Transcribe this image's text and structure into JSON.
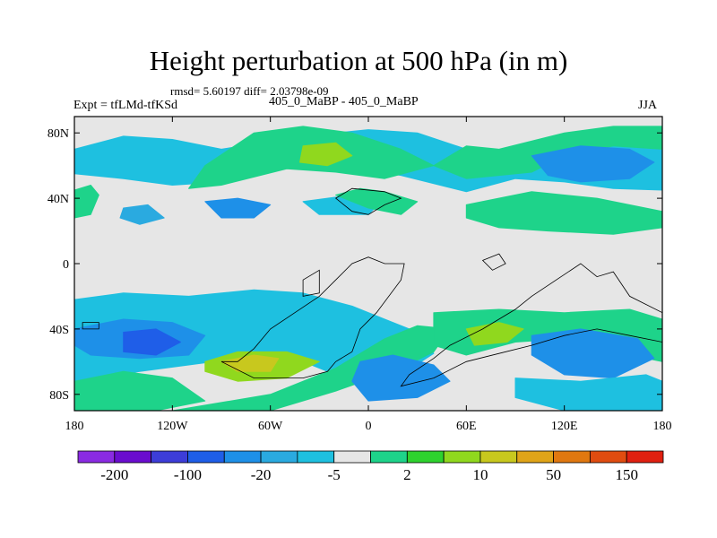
{
  "chart_data": {
    "type": "heatmap",
    "title": "Height perturbation at 500 hPa (in m)",
    "stats_line": "rmsd= 5.60197  diff= 2.03798e-09",
    "left_label": "Expt = tfLMd-tfKSd",
    "center_label": "405_0_MaBP - 405_0_MaBP",
    "right_label": "JJA",
    "xlim": [
      -180,
      180
    ],
    "ylim": [
      -90,
      90
    ],
    "x_ticks": [
      -180,
      -120,
      -60,
      0,
      60,
      120,
      180
    ],
    "x_tick_labels": [
      "180",
      "120W",
      "60W",
      "0",
      "60E",
      "120E",
      "180"
    ],
    "y_ticks": [
      80,
      40,
      0,
      -40,
      -80
    ],
    "y_tick_labels": [
      "80N",
      "40N",
      "0",
      "40S",
      "80S"
    ],
    "colorbar": {
      "colors": [
        "#8a2be2",
        "#6a0dcf",
        "#3d3dd8",
        "#1f5ee8",
        "#1e90e8",
        "#2aaae0",
        "#1ec0e0",
        "#e6e6e6",
        "#1ed38a",
        "#2ed22e",
        "#90d81e",
        "#c8c81e",
        "#e0a418",
        "#e07810",
        "#e04c10",
        "#e02010"
      ],
      "tick_labels": [
        "-200",
        "-100",
        "-20",
        "-5",
        "2",
        "10",
        "50",
        "150"
      ]
    },
    "features": [
      {
        "name": "north-cyan-band",
        "color": "#1ec0e0",
        "pts": [
          [
            -180,
            70
          ],
          [
            -150,
            78
          ],
          [
            -120,
            76
          ],
          [
            -90,
            70
          ],
          [
            -40,
            78
          ],
          [
            0,
            82
          ],
          [
            30,
            80
          ],
          [
            60,
            70
          ],
          [
            100,
            62
          ],
          [
            140,
            74
          ],
          [
            180,
            75
          ],
          [
            180,
            45
          ],
          [
            150,
            46
          ],
          [
            120,
            50
          ],
          [
            90,
            52
          ],
          [
            60,
            44
          ],
          [
            20,
            54
          ],
          [
            -20,
            60
          ],
          [
            -60,
            58
          ],
          [
            -90,
            50
          ],
          [
            -120,
            48
          ],
          [
            -150,
            52
          ],
          [
            -180,
            55
          ]
        ]
      },
      {
        "name": "north-green-zone",
        "color": "#1ed38a",
        "pts": [
          [
            -70,
            80
          ],
          [
            -40,
            84
          ],
          [
            -10,
            80
          ],
          [
            20,
            70
          ],
          [
            40,
            60
          ],
          [
            10,
            52
          ],
          [
            -20,
            56
          ],
          [
            -50,
            58
          ],
          [
            -90,
            48
          ],
          [
            -110,
            46
          ],
          [
            -100,
            60
          ]
        ]
      },
      {
        "name": "north-lime-zone",
        "color": "#90d81e",
        "pts": [
          [
            -40,
            72
          ],
          [
            -20,
            74
          ],
          [
            -10,
            66
          ],
          [
            -25,
            60
          ],
          [
            -42,
            62
          ]
        ]
      },
      {
        "name": "north-east-green",
        "color": "#1ed38a",
        "pts": [
          [
            40,
            60
          ],
          [
            60,
            72
          ],
          [
            80,
            70
          ],
          [
            120,
            80
          ],
          [
            150,
            84
          ],
          [
            180,
            84
          ],
          [
            180,
            70
          ],
          [
            150,
            72
          ],
          [
            120,
            66
          ],
          [
            100,
            56
          ],
          [
            60,
            52
          ]
        ]
      },
      {
        "name": "north-east-blue",
        "color": "#1e90e8",
        "pts": [
          [
            100,
            66
          ],
          [
            130,
            72
          ],
          [
            160,
            70
          ],
          [
            175,
            62
          ],
          [
            160,
            52
          ],
          [
            130,
            50
          ],
          [
            110,
            54
          ]
        ]
      },
      {
        "name": "mid-lat-green-east",
        "color": "#1ed38a",
        "pts": [
          [
            60,
            36
          ],
          [
            100,
            44
          ],
          [
            140,
            40
          ],
          [
            180,
            32
          ],
          [
            180,
            22
          ],
          [
            150,
            18
          ],
          [
            110,
            20
          ],
          [
            80,
            22
          ],
          [
            60,
            28
          ]
        ]
      },
      {
        "name": "mid-lat-blue-west",
        "color": "#1e90e8",
        "pts": [
          [
            -100,
            38
          ],
          [
            -80,
            40
          ],
          [
            -60,
            36
          ],
          [
            -70,
            28
          ],
          [
            -90,
            28
          ]
        ]
      },
      {
        "name": "mid-lat-cyan-center",
        "color": "#1ec0e0",
        "pts": [
          [
            -40,
            38
          ],
          [
            -10,
            42
          ],
          [
            10,
            40
          ],
          [
            0,
            30
          ],
          [
            -30,
            30
          ]
        ]
      },
      {
        "name": "mid-lat-green-small",
        "color": "#1ed38a",
        "pts": [
          [
            -20,
            42
          ],
          [
            -5,
            46
          ],
          [
            10,
            44
          ],
          [
            30,
            38
          ],
          [
            20,
            30
          ],
          [
            0,
            34
          ]
        ]
      },
      {
        "name": "western-green-blob",
        "color": "#1ed38a",
        "pts": [
          [
            -180,
            45
          ],
          [
            -170,
            48
          ],
          [
            -165,
            42
          ],
          [
            -170,
            30
          ],
          [
            -180,
            28
          ]
        ]
      },
      {
        "name": "western-lightblue-blob",
        "color": "#2aaae0",
        "pts": [
          [
            -150,
            34
          ],
          [
            -135,
            36
          ],
          [
            -125,
            28
          ],
          [
            -140,
            24
          ],
          [
            -152,
            28
          ]
        ]
      },
      {
        "name": "south-cyan-main",
        "color": "#1ec0e0",
        "pts": [
          [
            -180,
            -22
          ],
          [
            -150,
            -18
          ],
          [
            -110,
            -20
          ],
          [
            -70,
            -16
          ],
          [
            -40,
            -18
          ],
          [
            -10,
            -26
          ],
          [
            10,
            -34
          ],
          [
            30,
            -42
          ],
          [
            40,
            -55
          ],
          [
            20,
            -68
          ],
          [
            -10,
            -72
          ],
          [
            -40,
            -60
          ],
          [
            -80,
            -58
          ],
          [
            -110,
            -62
          ],
          [
            -140,
            -66
          ],
          [
            -180,
            -72
          ]
        ]
      },
      {
        "name": "south-blue-west",
        "color": "#1e90e8",
        "pts": [
          [
            -180,
            -40
          ],
          [
            -150,
            -34
          ],
          [
            -120,
            -36
          ],
          [
            -100,
            -44
          ],
          [
            -110,
            -56
          ],
          [
            -140,
            -58
          ],
          [
            -170,
            -56
          ],
          [
            -180,
            -50
          ]
        ]
      },
      {
        "name": "south-darkblue-core",
        "color": "#1f5ee8",
        "pts": [
          [
            -150,
            -42
          ],
          [
            -130,
            -40
          ],
          [
            -115,
            -48
          ],
          [
            -130,
            -56
          ],
          [
            -150,
            -54
          ]
        ]
      },
      {
        "name": "south-green-wave",
        "color": "#1ed38a",
        "pts": [
          [
            -120,
            -90
          ],
          [
            -60,
            -80
          ],
          [
            -20,
            -64
          ],
          [
            10,
            -46
          ],
          [
            30,
            -38
          ],
          [
            50,
            -40
          ],
          [
            40,
            -54
          ],
          [
            20,
            -64
          ],
          [
            -20,
            -78
          ],
          [
            -60,
            -90
          ]
        ]
      },
      {
        "name": "south-lime-core",
        "color": "#90d81e",
        "pts": [
          [
            -100,
            -60
          ],
          [
            -80,
            -54
          ],
          [
            -50,
            -54
          ],
          [
            -30,
            -60
          ],
          [
            -50,
            -70
          ],
          [
            -80,
            -72
          ],
          [
            -100,
            -66
          ]
        ]
      },
      {
        "name": "south-yellow-core",
        "color": "#c8c81e",
        "pts": [
          [
            -90,
            -60
          ],
          [
            -70,
            -56
          ],
          [
            -55,
            -58
          ],
          [
            -60,
            -66
          ],
          [
            -80,
            -66
          ]
        ]
      },
      {
        "name": "south-far-green",
        "color": "#1ed38a",
        "pts": [
          [
            -180,
            -72
          ],
          [
            -150,
            -66
          ],
          [
            -120,
            -70
          ],
          [
            -100,
            -84
          ],
          [
            -130,
            -90
          ],
          [
            -180,
            -90
          ]
        ]
      },
      {
        "name": "south-east-green",
        "color": "#1ed38a",
        "pts": [
          [
            40,
            -30
          ],
          [
            80,
            -28
          ],
          [
            120,
            -30
          ],
          [
            160,
            -28
          ],
          [
            180,
            -34
          ],
          [
            180,
            -60
          ],
          [
            150,
            -54
          ],
          [
            120,
            -46
          ],
          [
            90,
            -48
          ],
          [
            60,
            -56
          ],
          [
            40,
            -50
          ]
        ]
      },
      {
        "name": "south-east-lime",
        "color": "#90d81e",
        "pts": [
          [
            60,
            -40
          ],
          [
            80,
            -36
          ],
          [
            95,
            -40
          ],
          [
            85,
            -48
          ],
          [
            65,
            -50
          ]
        ]
      },
      {
        "name": "south-east-blue",
        "color": "#1e90e8",
        "pts": [
          [
            100,
            -44
          ],
          [
            130,
            -40
          ],
          [
            165,
            -46
          ],
          [
            175,
            -58
          ],
          [
            150,
            -70
          ],
          [
            120,
            -68
          ],
          [
            100,
            -56
          ]
        ]
      },
      {
        "name": "south-east-cyan-tail",
        "color": "#1ec0e0",
        "pts": [
          [
            90,
            -70
          ],
          [
            130,
            -72
          ],
          [
            170,
            -68
          ],
          [
            180,
            -72
          ],
          [
            180,
            -90
          ],
          [
            120,
            -90
          ],
          [
            90,
            -82
          ]
        ]
      },
      {
        "name": "south-center-blue",
        "color": "#1e90e8",
        "pts": [
          [
            -5,
            -60
          ],
          [
            15,
            -56
          ],
          [
            40,
            -62
          ],
          [
            50,
            -72
          ],
          [
            30,
            -82
          ],
          [
            0,
            -84
          ],
          [
            -10,
            -72
          ]
        ]
      }
    ],
    "outlines": [
      [
        [
          -20,
          -60
        ],
        [
          -10,
          -54
        ],
        [
          -5,
          -40
        ],
        [
          5,
          -30
        ],
        [
          20,
          -10
        ],
        [
          22,
          0
        ],
        [
          10,
          0
        ],
        [
          0,
          4
        ],
        [
          -10,
          0
        ],
        [
          -20,
          -10
        ],
        [
          -30,
          -20
        ],
        [
          -45,
          -30
        ],
        [
          -60,
          -40
        ],
        [
          -70,
          -52
        ],
        [
          -80,
          -60
        ],
        [
          -90,
          -60
        ],
        [
          -70,
          -70
        ],
        [
          -40,
          -70
        ],
        [
          -25,
          -66
        ]
      ],
      [
        [
          20,
          -75
        ],
        [
          40,
          -70
        ],
        [
          60,
          -60
        ],
        [
          80,
          -55
        ],
        [
          100,
          -50
        ],
        [
          120,
          -44
        ],
        [
          140,
          -40
        ],
        [
          160,
          -44
        ],
        [
          180,
          -48
        ],
        [
          180,
          -30
        ],
        [
          160,
          -20
        ],
        [
          150,
          -5
        ],
        [
          140,
          -8
        ],
        [
          130,
          0
        ],
        [
          115,
          -10
        ],
        [
          100,
          -20
        ],
        [
          90,
          -28
        ],
        [
          70,
          -40
        ],
        [
          50,
          -50
        ],
        [
          40,
          -58
        ],
        [
          25,
          -68
        ]
      ],
      [
        [
          -20,
          40
        ],
        [
          -10,
          46
        ],
        [
          10,
          44
        ],
        [
          20,
          40
        ],
        [
          10,
          36
        ],
        [
          0,
          30
        ],
        [
          -10,
          32
        ]
      ],
      [
        [
          70,
          2
        ],
        [
          80,
          6
        ],
        [
          84,
          0
        ],
        [
          76,
          -4
        ]
      ],
      [
        [
          -40,
          -10
        ],
        [
          -30,
          -4
        ],
        [
          -30,
          -18
        ],
        [
          -40,
          -20
        ]
      ],
      [
        [
          -175,
          -36
        ],
        [
          -165,
          -36
        ],
        [
          -165,
          -40
        ],
        [
          -175,
          -40
        ]
      ]
    ]
  }
}
